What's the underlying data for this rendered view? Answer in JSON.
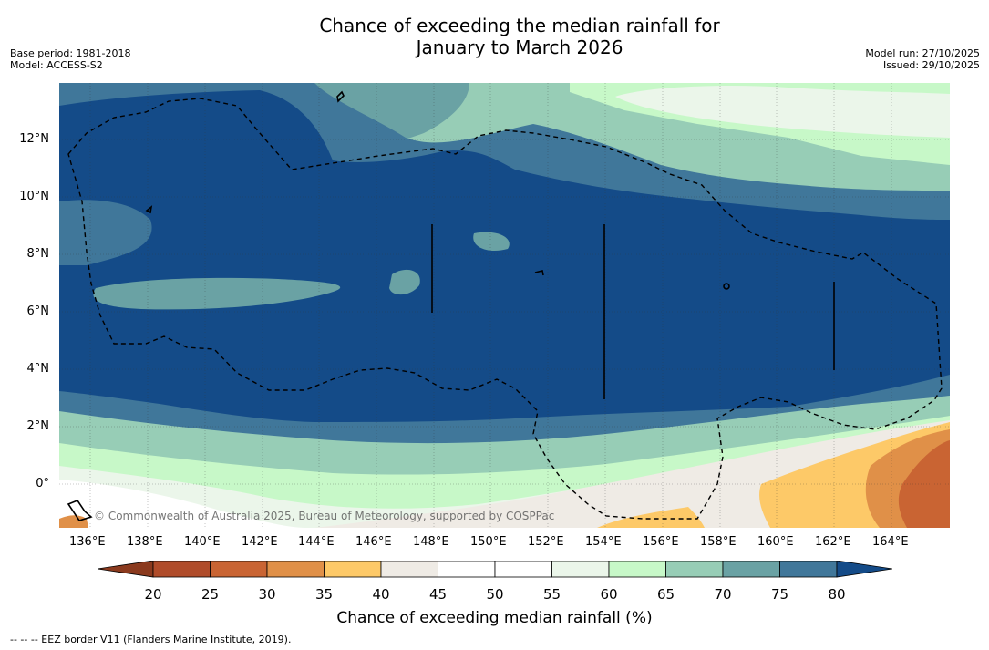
{
  "title": {
    "line1": "Chance of exceeding the median rainfall for",
    "line2": "January to March 2026"
  },
  "meta_left": {
    "base_period": "Base period: 1981-2018",
    "model": "Model: ACCESS-S2"
  },
  "meta_right": {
    "model_run": "Model run: 27/10/2025",
    "issued": "Issued: 29/10/2025"
  },
  "map": {
    "lon_labels": [
      "136°E",
      "138°E",
      "140°E",
      "142°E",
      "144°E",
      "146°E",
      "148°E",
      "150°E",
      "152°E",
      "154°E",
      "156°E",
      "158°E",
      "160°E",
      "162°E",
      "164°E"
    ],
    "lat_labels": [
      "12°N",
      "10°N",
      "8°N",
      "6°N",
      "4°N",
      "2°N",
      "0°"
    ],
    "copyright": "© Commonwealth of Australia 2025, Bureau of Meteorology, supported by COSPPac"
  },
  "colorbar": {
    "ticks": [
      "20",
      "25",
      "30",
      "35",
      "40",
      "45",
      "50",
      "55",
      "60",
      "65",
      "70",
      "75",
      "80"
    ],
    "colors": [
      "#8b3a1e",
      "#b04c2a",
      "#c96433",
      "#e09048",
      "#fdc968",
      "#efebe5",
      "#ffffff",
      "#ffffff",
      "#ebf6ea",
      "#c7f8c8",
      "#97cdb6",
      "#6aa2a4",
      "#40779a",
      "#144b88"
    ],
    "title": "Chance of exceeding median rainfall (%)"
  },
  "footer": {
    "legend": "--  --  -- EEZ border V11 (Flanders Marine Institute, 2019)."
  }
}
